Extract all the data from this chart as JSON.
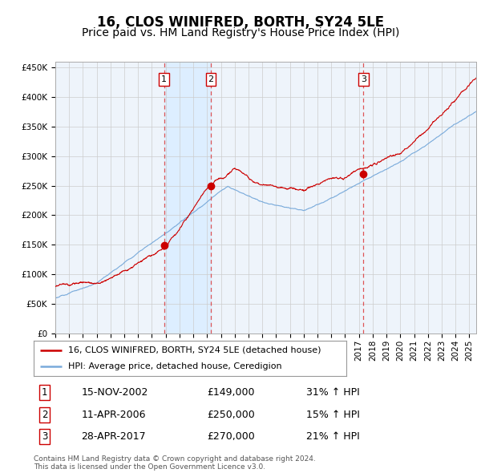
{
  "title": "16, CLOS WINIFRED, BORTH, SY24 5LE",
  "subtitle": "Price paid vs. HM Land Registry's House Price Index (HPI)",
  "ylim": [
    0,
    460000
  ],
  "yticks": [
    0,
    50000,
    100000,
    150000,
    200000,
    250000,
    300000,
    350000,
    400000,
    450000
  ],
  "xlim_start": 1995.0,
  "xlim_end": 2025.5,
  "sale_dates": [
    2002.876,
    2006.278,
    2017.326
  ],
  "sale_prices": [
    149000,
    250000,
    270000
  ],
  "sale_labels": [
    "1",
    "2",
    "3"
  ],
  "red_line_color": "#cc0000",
  "blue_line_color": "#7aabdb",
  "vline_color": "#dd4444",
  "shade_color": "#ddeeff",
  "background_color": "#eef4fb",
  "plot_bg_color": "#ffffff",
  "legend_line1": "16, CLOS WINIFRED, BORTH, SY24 5LE (detached house)",
  "legend_line2": "HPI: Average price, detached house, Ceredigion",
  "table_entries": [
    {
      "num": "1",
      "date": "15-NOV-2002",
      "price": "£149,000",
      "change": "31% ↑ HPI"
    },
    {
      "num": "2",
      "date": "11-APR-2006",
      "price": "£250,000",
      "change": "15% ↑ HPI"
    },
    {
      "num": "3",
      "date": "28-APR-2017",
      "price": "£270,000",
      "change": "21% ↑ HPI"
    }
  ],
  "footer": "Contains HM Land Registry data © Crown copyright and database right 2024.\nThis data is licensed under the Open Government Licence v3.0.",
  "title_fontsize": 12,
  "subtitle_fontsize": 10
}
